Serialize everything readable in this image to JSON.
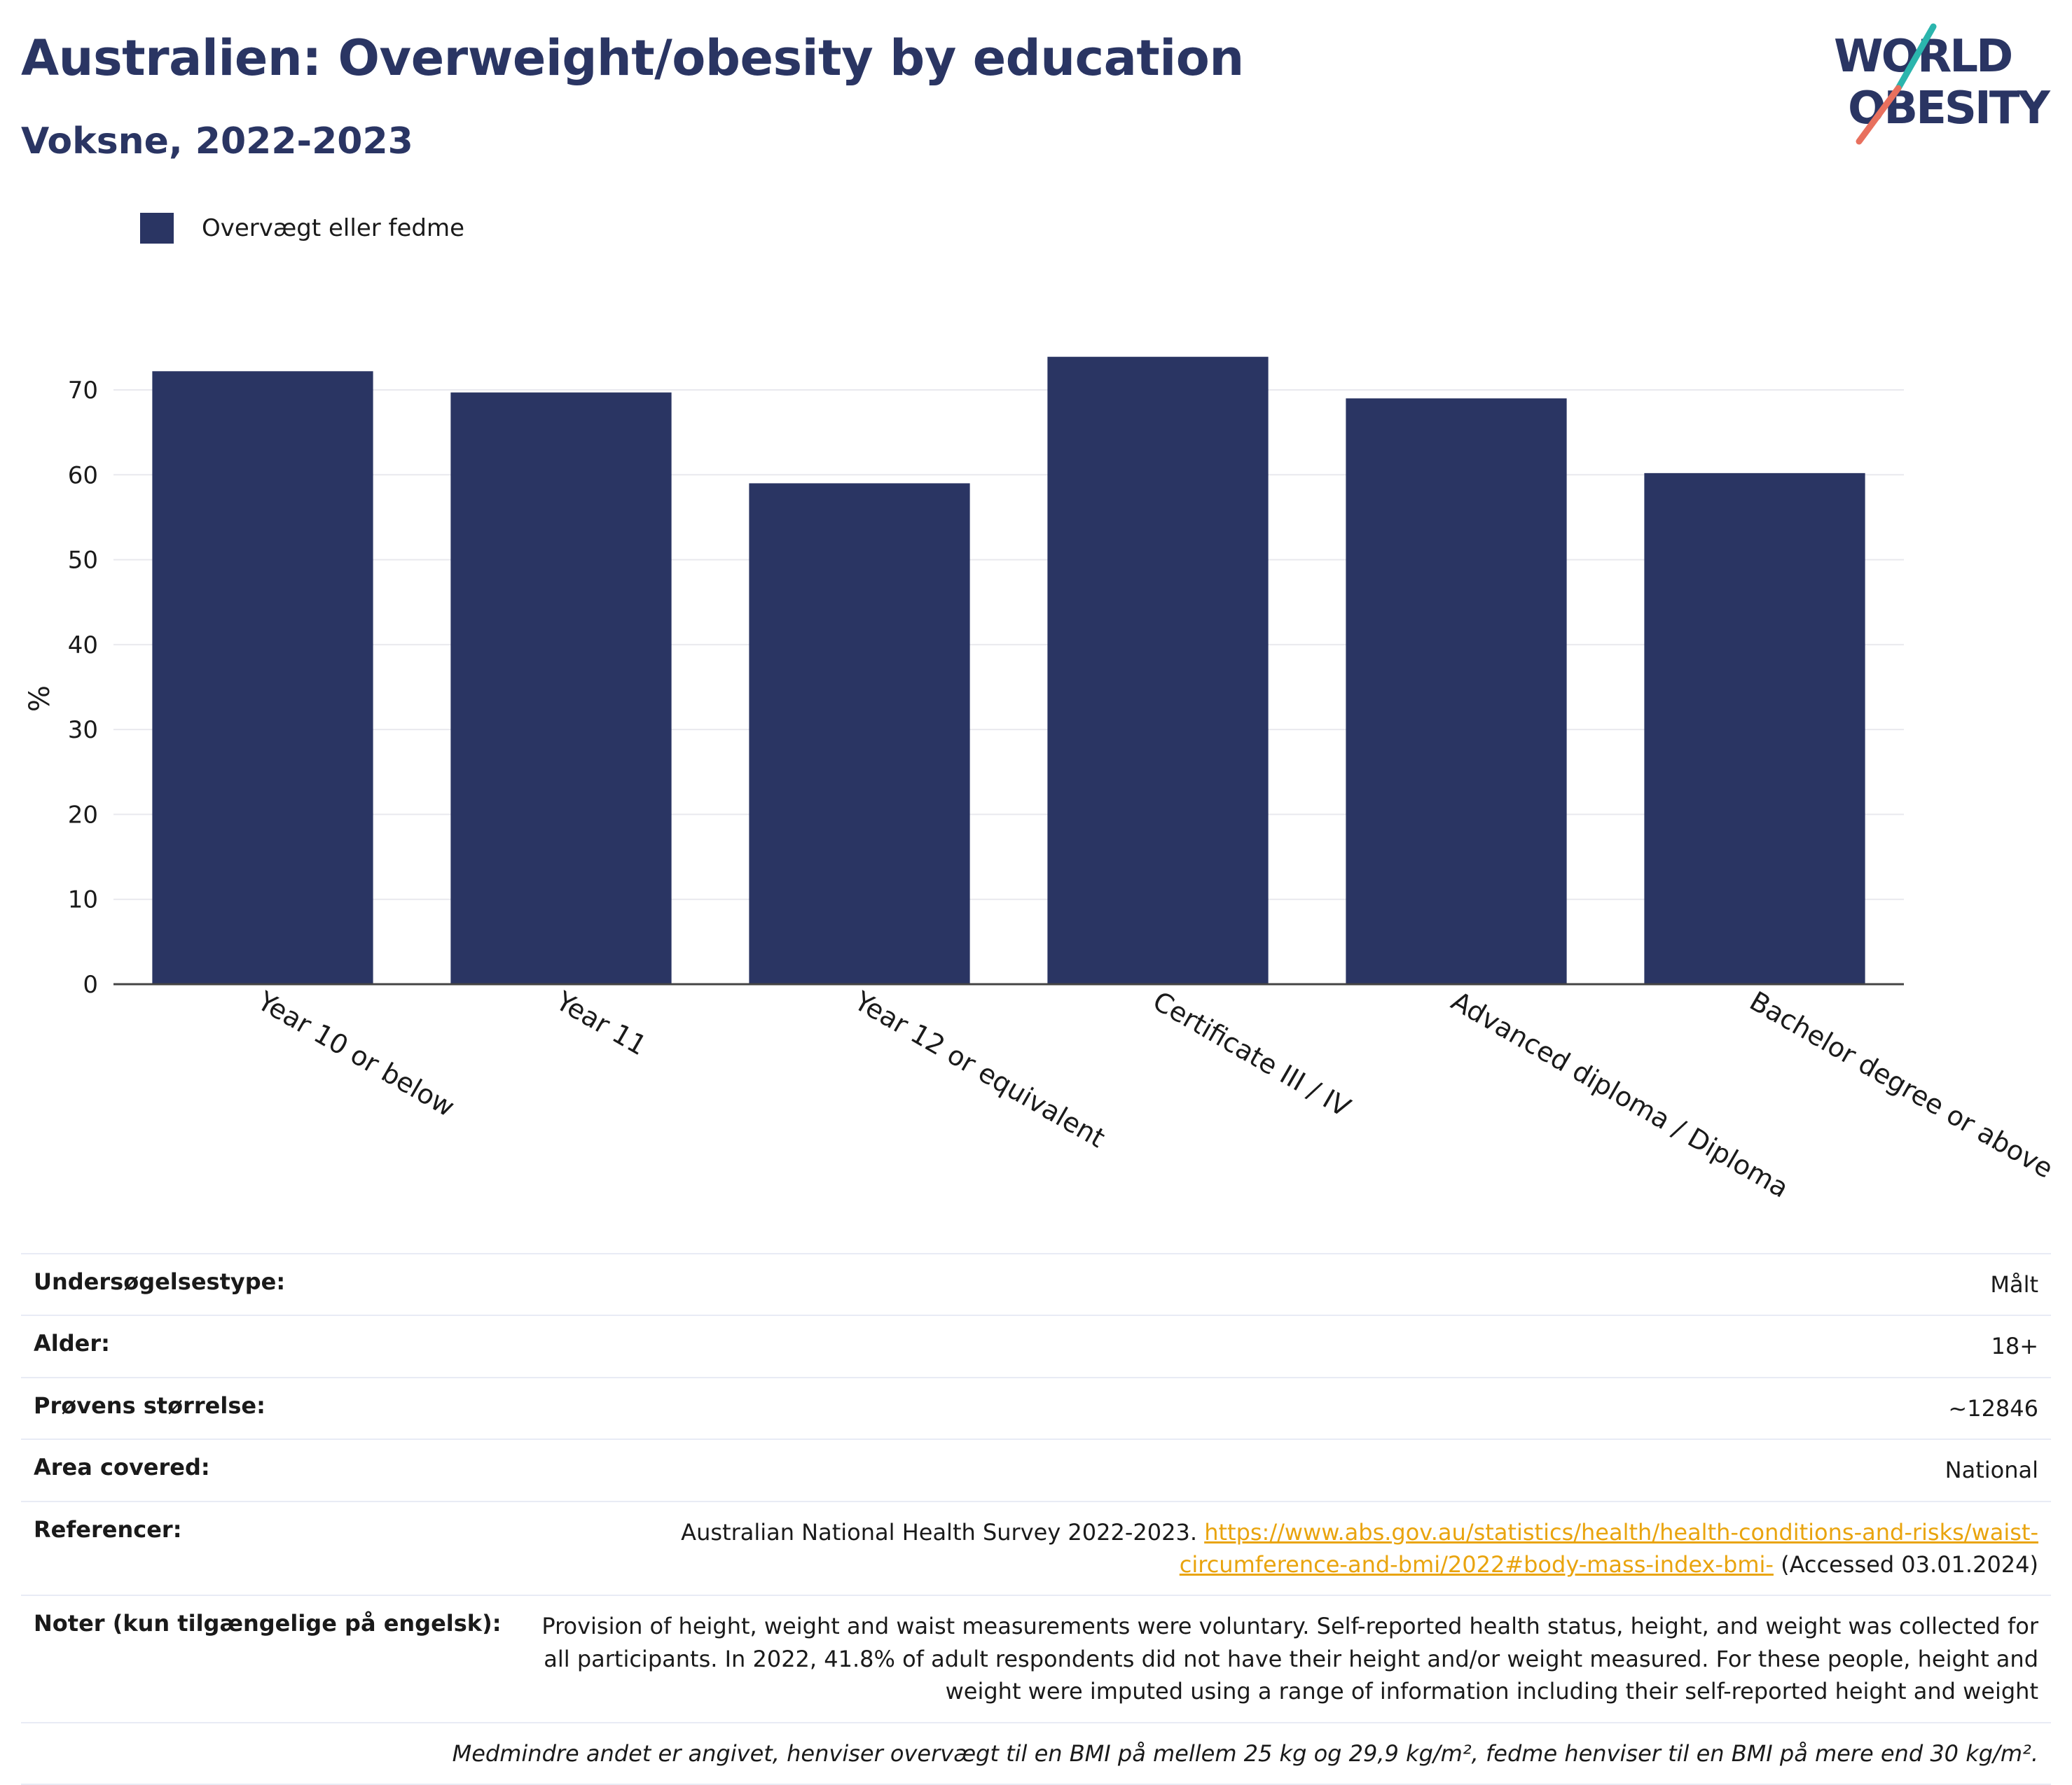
{
  "header": {
    "title": "Australien: Overweight/obesity by education",
    "subtitle": "Voksne, 2022-2023"
  },
  "logo": {
    "line1": "WORLD",
    "line2": "OBESITY"
  },
  "colors": {
    "bar": "#2a3563",
    "title": "#2a3563",
    "link": "#e9a40e",
    "logo_teal": "#2bb5ad",
    "logo_coral": "#e8705e"
  },
  "chart_data": {
    "type": "bar",
    "categories": [
      "Year 10 or below",
      "Year 11",
      "Year 12 or equivalent",
      "Certificate III / IV",
      "Advanced diploma / Diploma",
      "Bachelor degree or above"
    ],
    "series": [
      {
        "name": "Overvægt eller fedme",
        "values": [
          72.2,
          69.7,
          59.0,
          73.9,
          69.0,
          60.2
        ]
      }
    ],
    "ylabel": "%",
    "ylim": [
      0,
      80
    ],
    "yticks": [
      0,
      10,
      20,
      30,
      40,
      50,
      60,
      70
    ],
    "grid": true,
    "legend": "top-left"
  },
  "info": {
    "survey_type": {
      "label": "Undersøgelsestype:",
      "value": "Målt"
    },
    "age": {
      "label": "Alder:",
      "value": "18+"
    },
    "sample_size": {
      "label": "Prøvens størrelse:",
      "value": "~12846"
    },
    "area": {
      "label": "Area covered:",
      "value": "National"
    },
    "references": {
      "label": "Referencer:",
      "text": "Australian National Health Survey 2022-2023.",
      "link_line1": "https://www.abs.gov.au/statistics/health/health-conditions-and-risks/waist-",
      "link_line2": "circumference-and-bmi/2022#body-mass-index-bmi-",
      "accessed": "(Accessed 03.01.2024)"
    },
    "notes": {
      "label": "Noter (kun tilgængelige på engelsk):",
      "value": "Provision of height, weight and waist measurements were voluntary. Self-reported health status, height, and weight was collected for all participants. In 2022, 41.8% of adult respondents did not have their height and/or weight measured. For these people, height and weight were imputed using a range of information including their self-reported height and weight"
    },
    "footnote": "Medmindre andet er angivet, henviser overvægt til en BMI på mellem 25 kg og 29,9 kg/m², fedme henviser til en BMI på mere end 30 kg/m²."
  }
}
